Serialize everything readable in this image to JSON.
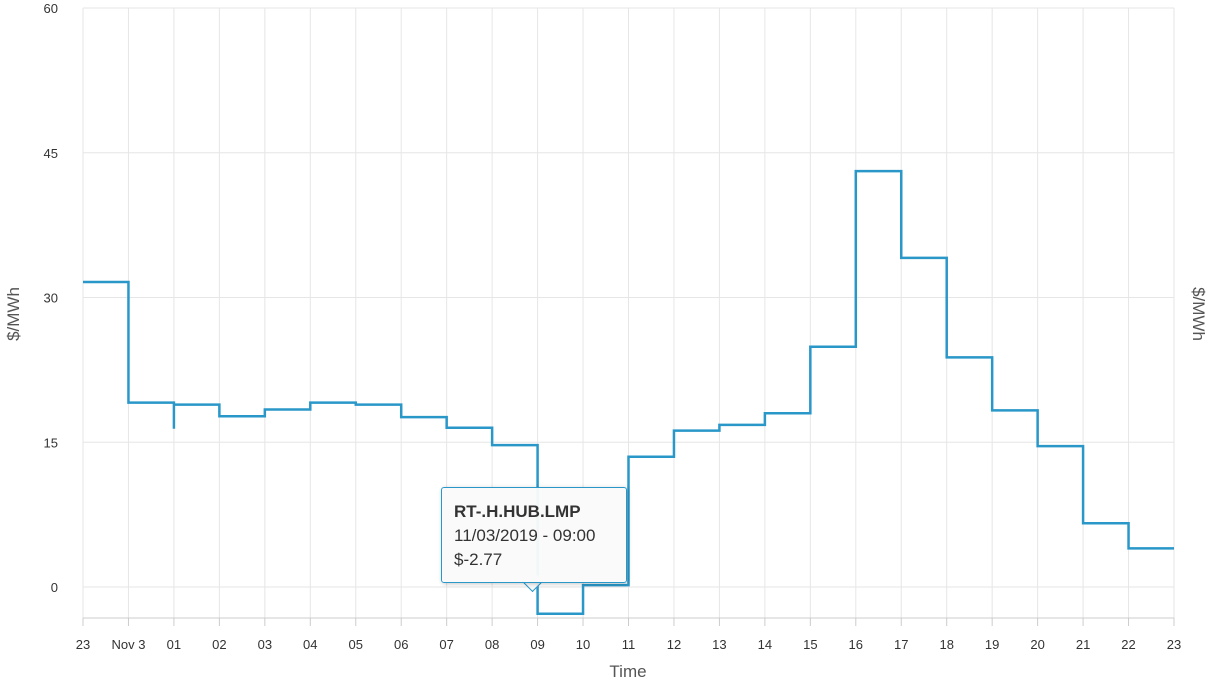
{
  "chart_data": {
    "type": "line",
    "step": true,
    "xlabel": "Time",
    "ylabel_left": "$/MWh",
    "ylabel_right": "$/MWh",
    "ylim": [
      -5,
      60
    ],
    "yticks": [
      0,
      15,
      30,
      45,
      60
    ],
    "x_tick_labels": [
      "23",
      "Nov 3",
      "01",
      "02",
      "03",
      "04",
      "05",
      "06",
      "07",
      "08",
      "09",
      "10",
      "11",
      "12",
      "13",
      "14",
      "15",
      "16",
      "17",
      "18",
      "19",
      "20",
      "21",
      "22",
      "23"
    ],
    "grid": true,
    "color": "#2a97c9",
    "series": [
      {
        "name": "RT-.H.HUB.LMP",
        "x": [
          "23:00",
          "00:00",
          "01:00",
          "01:00",
          "02:00",
          "03:00",
          "04:00",
          "05:00",
          "06:00",
          "07:00",
          "08:00",
          "09:00",
          "10:00",
          "11:00",
          "12:00",
          "13:00",
          "14:00",
          "15:00",
          "16:00",
          "17:00",
          "18:00",
          "19:00",
          "20:00",
          "21:00",
          "22:00"
        ],
        "values": [
          31.6,
          19.1,
          16.4,
          18.9,
          17.7,
          18.4,
          19.1,
          18.9,
          17.6,
          16.5,
          14.7,
          -2.77,
          0.2,
          13.5,
          16.2,
          16.8,
          18.0,
          24.9,
          43.1,
          34.1,
          23.8,
          18.3,
          14.6,
          6.6,
          4.0
        ]
      }
    ],
    "tooltip": {
      "series_name": "RT-.H.HUB.LMP",
      "datetime": "11/03/2019 - 09:00",
      "value_text": "$-2.77"
    }
  }
}
